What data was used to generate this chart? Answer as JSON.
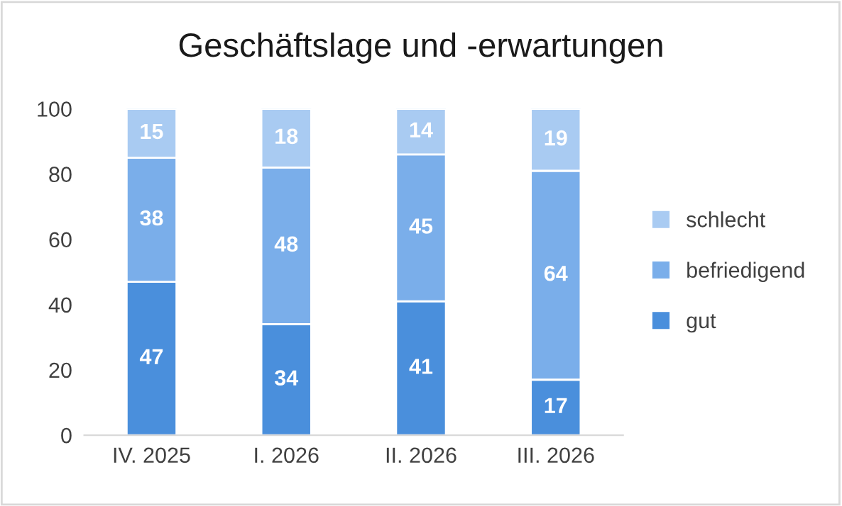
{
  "chart_data": {
    "type": "bar",
    "title": "Geschäftslage und -erwartungen",
    "categories": [
      "IV. 2025",
      "I. 2026",
      "II. 2026",
      "III. 2026"
    ],
    "stacked": true,
    "series": [
      {
        "name": "gut",
        "color": "#4a8fdc",
        "values": [
          47,
          34,
          41,
          17
        ]
      },
      {
        "name": "befriedigend",
        "color": "#7aaeea",
        "values": [
          38,
          48,
          45,
          64
        ]
      },
      {
        "name": "schlecht",
        "color": "#a9cbf2",
        "values": [
          15,
          18,
          14,
          19
        ]
      }
    ],
    "ylim": [
      0,
      100
    ],
    "yticks": [
      0,
      20,
      40,
      60,
      80,
      100
    ],
    "data_labels": true,
    "grid": false,
    "legend": "right"
  }
}
